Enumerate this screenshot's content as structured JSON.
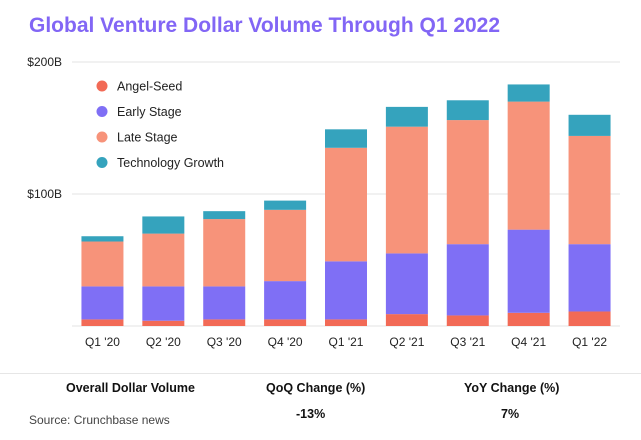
{
  "chart_data": {
    "type": "bar",
    "stacked": true,
    "title": "Global Venture Dollar Volume Through Q1 2022",
    "categories": [
      "Q1 '20",
      "Q2 '20",
      "Q3 '20",
      "Q4 '20",
      "Q1 '21",
      "Q2 '21",
      "Q3 '21",
      "Q4 '21",
      "Q1 '22"
    ],
    "series": [
      {
        "name": "Angel-Seed",
        "color": "#f26a56",
        "values": [
          5,
          4,
          5,
          5,
          5,
          9,
          8,
          10,
          11
        ]
      },
      {
        "name": "Early Stage",
        "color": "#7f6ff5",
        "values": [
          25,
          26,
          25,
          29,
          44,
          46,
          54,
          63,
          51
        ]
      },
      {
        "name": "Late Stage",
        "color": "#f7937a",
        "values": [
          34,
          40,
          51,
          54,
          86,
          96,
          94,
          97,
          82
        ]
      },
      {
        "name": "Technology Growth",
        "color": "#35a3bd",
        "values": [
          4,
          13,
          6,
          7,
          14,
          15,
          15,
          13,
          16
        ]
      }
    ],
    "ylim": [
      0,
      200
    ],
    "yticks": [
      {
        "value": 100,
        "label": "$100B"
      },
      {
        "value": 200,
        "label": "$200B"
      }
    ],
    "grid": true,
    "legend_position": "top-left",
    "xlabel": "",
    "ylabel": ""
  },
  "summary": {
    "headers": [
      "Overall Dollar Volume",
      "QoQ Change (%)",
      "YoY Change (%)"
    ],
    "values": [
      "",
      "-13%",
      "7%"
    ]
  },
  "source": "Source: Crunchbase news"
}
